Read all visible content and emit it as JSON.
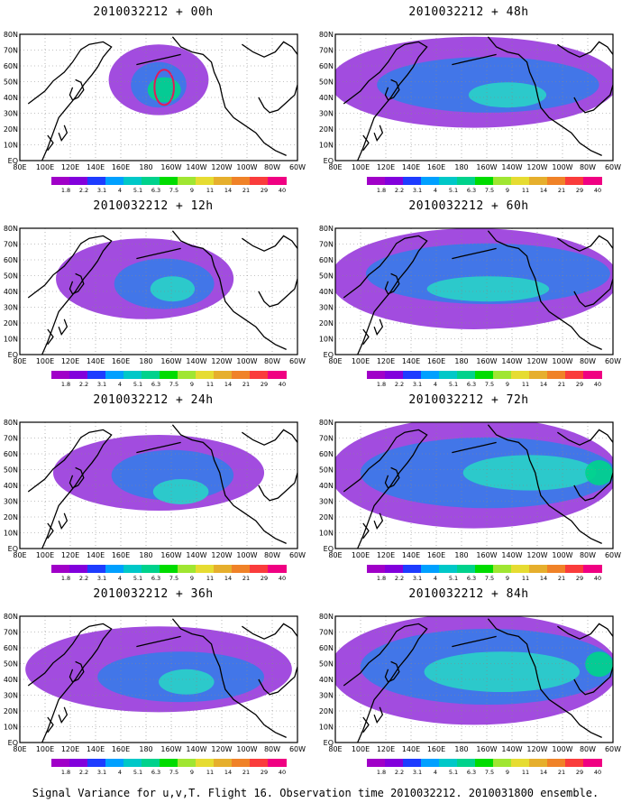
{
  "caption": "Signal Variance for u,v,T. Flight 16. Observation time 2010032212. 2010031800 ensemble.",
  "panels": [
    {
      "title": "2010032212 + 00h",
      "lead": 0
    },
    {
      "title": "2010032212 + 48h",
      "lead": 48
    },
    {
      "title": "2010032212 + 12h",
      "lead": 12
    },
    {
      "title": "2010032212 + 60h",
      "lead": 60
    },
    {
      "title": "2010032212 + 24h",
      "lead": 24
    },
    {
      "title": "2010032212 + 72h",
      "lead": 72
    },
    {
      "title": "2010032212 + 36h",
      "lead": 36
    },
    {
      "title": "2010032212 + 84h",
      "lead": 84
    }
  ],
  "axis": {
    "lon_labels": [
      "80E",
      "100E",
      "120E",
      "140E",
      "160E",
      "180",
      "160W",
      "140W",
      "120W",
      "100W",
      "80W",
      "60W"
    ],
    "lat_labels": [
      "EQ",
      "10N",
      "20N",
      "30N",
      "40N",
      "50N",
      "60N",
      "70N",
      "80N"
    ]
  },
  "colorbar": {
    "levels": [
      "1.8",
      "2.2",
      "3.1",
      "4",
      "5.1",
      "6.3",
      "7.5",
      "9",
      "11",
      "14",
      "21",
      "29",
      "40"
    ],
    "colors": [
      "#a000c8",
      "#8200dc",
      "#1e3cff",
      "#00a0ff",
      "#00c8c8",
      "#00d28c",
      "#00dc00",
      "#a0e632",
      "#e6dc32",
      "#e6af2d",
      "#f08228",
      "#fa3c3c",
      "#f00082"
    ]
  },
  "colors": {
    "land": "#ffffff",
    "coast": "#000000",
    "low": "#9a3ddc",
    "mid": "#3a7ae8",
    "high": "#2ad0c8",
    "peak": "#00d28c",
    "contour": "#e01a5a"
  }
}
